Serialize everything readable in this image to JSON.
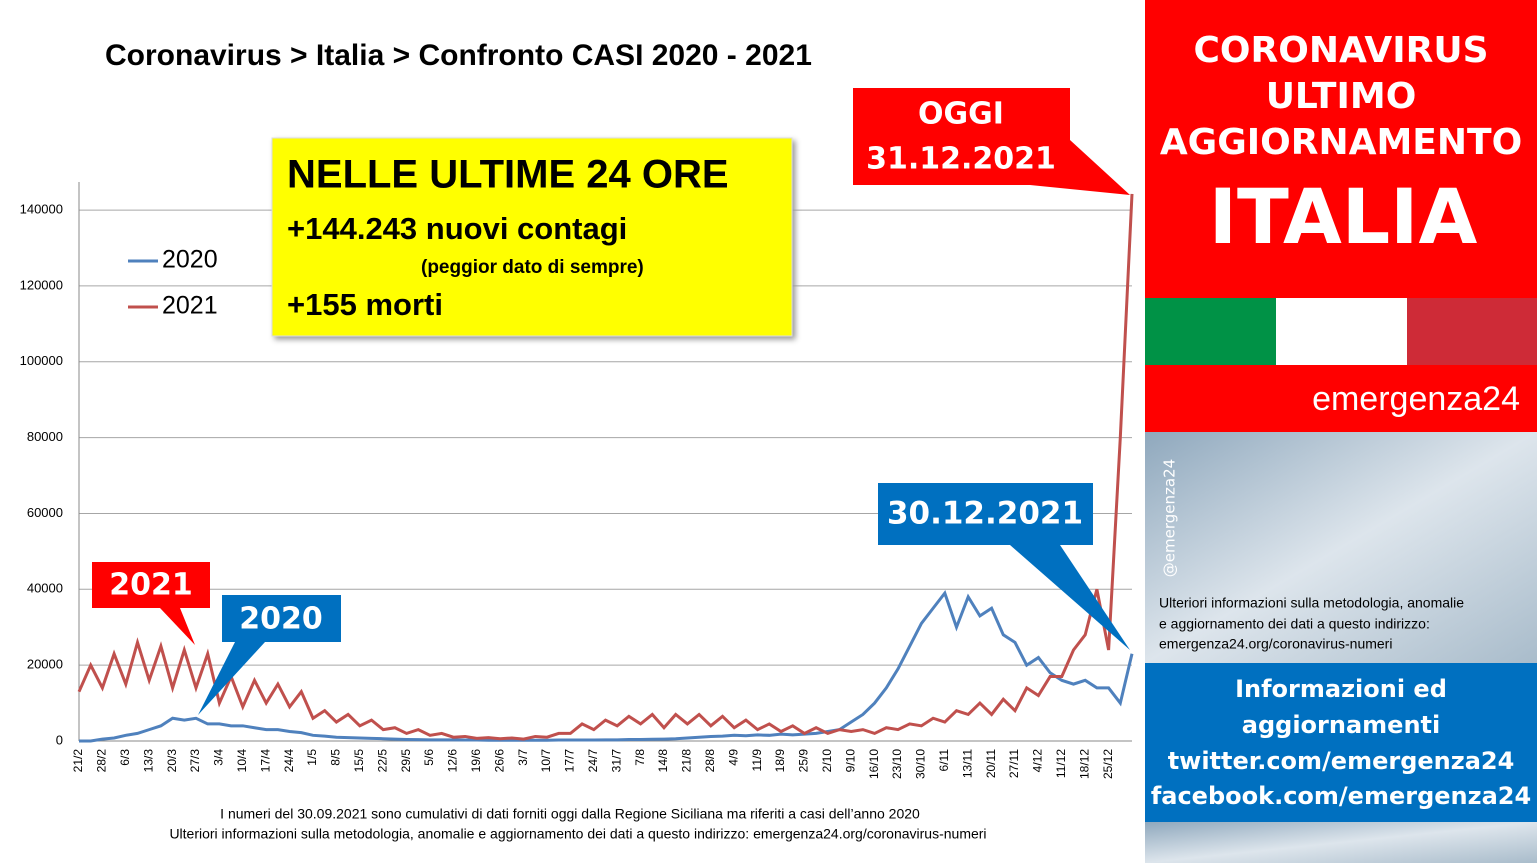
{
  "chart_data": {
    "type": "line",
    "title": "Coronavirus > Italia > Confronto CASI 2020 - 2021",
    "categories": [
      "21/2",
      null,
      "28/2",
      null,
      "6/3",
      null,
      "13/3",
      null,
      "20/3",
      null,
      "27/3",
      null,
      "3/4",
      null,
      "10/4",
      null,
      "17/4",
      null,
      "24/4",
      null,
      "1/5",
      null,
      "8/5",
      null,
      "15/5",
      null,
      "22/5",
      null,
      "29/5",
      null,
      "5/6",
      null,
      "12/6",
      null,
      "19/6",
      null,
      "26/6",
      null,
      "3/7",
      null,
      "10/7",
      null,
      "17/7",
      null,
      "24/7",
      null,
      "31/7",
      null,
      "7/8",
      null,
      "14/8",
      null,
      "21/8",
      null,
      "28/8",
      null,
      "4/9",
      null,
      "11/9",
      null,
      "18/9",
      null,
      "25/9",
      null,
      "2/10",
      null,
      "9/10",
      null,
      "16/10",
      null,
      "23/10",
      null,
      "30/10",
      null,
      "6/11",
      null,
      "13/11",
      null,
      "20/11",
      null,
      "27/11",
      null,
      "4/12",
      null,
      "11/12",
      null,
      "18/12",
      null,
      "25/12",
      null,
      null
    ],
    "series": [
      {
        "name": "2020",
        "color": "#4f81bd",
        "values": [
          0,
          0,
          500,
          800,
          1500,
          2000,
          3000,
          4000,
          6000,
          5500,
          6000,
          4500,
          4500,
          4000,
          4000,
          3500,
          3000,
          3000,
          2500,
          2200,
          1500,
          1300,
          1000,
          900,
          800,
          700,
          600,
          500,
          400,
          350,
          300,
          300,
          300,
          250,
          250,
          200,
          200,
          200,
          200,
          200,
          200,
          250,
          250,
          250,
          250,
          300,
          300,
          400,
          400,
          450,
          500,
          600,
          800,
          1000,
          1200,
          1300,
          1500,
          1400,
          1600,
          1500,
          1800,
          1600,
          1800,
          2000,
          2500,
          3000,
          5000,
          7000,
          10000,
          14000,
          19000,
          25000,
          31000,
          35000,
          39000,
          30000,
          38000,
          33000,
          35000,
          28000,
          26000,
          20000,
          22000,
          18000,
          16000,
          15000,
          16000,
          14000,
          14000,
          10000,
          23000
        ]
      },
      {
        "name": "2021",
        "color": "#c0504d",
        "values": [
          13000,
          20000,
          14000,
          23000,
          15000,
          26000,
          16000,
          25000,
          14000,
          24000,
          14000,
          23000,
          10000,
          17000,
          9000,
          16000,
          10000,
          15000,
          9000,
          13000,
          6000,
          8000,
          5000,
          7000,
          4000,
          5500,
          3000,
          3500,
          2000,
          3000,
          1500,
          2000,
          1000,
          1200,
          700,
          900,
          600,
          800,
          500,
          1200,
          1000,
          2000,
          2000,
          4500,
          3000,
          5500,
          4000,
          6500,
          4500,
          7000,
          3500,
          7000,
          4500,
          7000,
          4000,
          6500,
          3500,
          5500,
          3000,
          4500,
          2500,
          4000,
          2000,
          3500,
          2000,
          3000,
          2500,
          3000,
          2000,
          3500,
          3000,
          4500,
          4000,
          6000,
          5000,
          8000,
          7000,
          10000,
          7000,
          11000,
          8000,
          14000,
          12000,
          17000,
          17000,
          24000,
          28000,
          40000,
          24000,
          80000,
          144243
        ]
      }
    ],
    "ylim": [
      0,
      147400
    ],
    "yticks": [
      0,
      20000,
      40000,
      60000,
      80000,
      100000,
      120000,
      140000
    ],
    "grid": true,
    "info_box": {
      "heading": "NELLE ULTIME 24 ORE",
      "cases": "+144.243 nuovi contagi",
      "note": "(peggior dato di sempre)",
      "deaths": "+155 morti"
    },
    "callouts": {
      "today": [
        "OGGI",
        "31.12.2021"
      ],
      "yesterday": "30.12.2021",
      "year2021": "2021",
      "year2020": "2020"
    },
    "footnotes": [
      "I numeri del 30.09.2021 sono cumulativi di dati forniti oggi dalla Regione Siciliana ma riferiti a casi dell’anno 2020",
      "Ulteriori informazioni sulla metodologia, anomalie e aggiornamento dei dati a questo indirizzo: emergenza24.org/coronavirus-numeri"
    ]
  },
  "sidebar": {
    "header": [
      "CORONAVIRUS",
      "ULTIMO",
      "AGGIORNAMENTO"
    ],
    "country": "ITALIA",
    "brand": "emergenza24",
    "handle": "@emergenza24",
    "info": [
      "Ulteriori informazioni sulla metodologia, anomalie",
      "e aggiornamento dei dati a questo indirizzo:",
      "emergenza24.org/coronavirus-numeri"
    ],
    "social": [
      "Informazioni ed",
      "aggiornamenti",
      "twitter.com/emergenza24",
      "facebook.com/emergenza24"
    ]
  }
}
